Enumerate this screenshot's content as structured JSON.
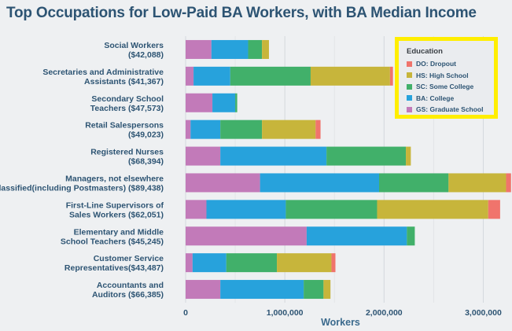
{
  "chart_data": {
    "type": "bar",
    "orientation": "horizontal",
    "stacked": true,
    "title": "Top Occupations for Low-Paid BA Workers, with BA Median Income",
    "xlabel": "Workers",
    "ylabel": "",
    "xlim": [
      0,
      3250000
    ],
    "xticks": [
      0,
      1000000,
      2000000,
      3000000
    ],
    "xtick_labels": [
      "0",
      "1,000,000",
      "2,000,000",
      "3,000,000"
    ],
    "grid": true,
    "legend_position": "top-right",
    "legend_title": "Education",
    "categories": [
      [
        "Social Workers",
        "($42,088)"
      ],
      [
        "Secretaries and Administrative",
        "Assistants ($41,367)"
      ],
      [
        "Secondary School",
        "Teachers ($47,573)"
      ],
      [
        "Retail Salespersons",
        "($49,023)"
      ],
      [
        "Registered Nurses",
        "($68,394)"
      ],
      [
        "Managers, not elsewhere",
        "classified(including Postmasters) ($89,438)"
      ],
      [
        "First-Line Supervisors of",
        "Sales Workers ($62,051)"
      ],
      [
        "Elementary and Middle",
        "School Teachers ($45,245)"
      ],
      [
        "Customer Service",
        "Representatives($43,487)"
      ],
      [
        "Accountants and",
        "Auditors ($66,385)"
      ]
    ],
    "series": [
      {
        "name": "GS: Graduate School",
        "color": "#c27ab9",
        "values": [
          260000,
          80000,
          270000,
          50000,
          350000,
          750000,
          210000,
          1220000,
          70000,
          350000
        ]
      },
      {
        "name": "BA: College",
        "color": "#27a2dc",
        "values": [
          370000,
          370000,
          230000,
          300000,
          1070000,
          1200000,
          800000,
          1010000,
          340000,
          840000
        ]
      },
      {
        "name": "SC: Some College",
        "color": "#41b06a",
        "values": [
          140000,
          810000,
          20000,
          420000,
          800000,
          700000,
          920000,
          80000,
          510000,
          200000
        ]
      },
      {
        "name": "HS: High School",
        "color": "#c7b53b",
        "values": [
          70000,
          800000,
          0,
          540000,
          50000,
          580000,
          1120000,
          0,
          550000,
          70000
        ]
      },
      {
        "name": "DO: Dropout",
        "color": "#f0746c",
        "values": [
          0,
          30000,
          0,
          50000,
          0,
          50000,
          120000,
          0,
          40000,
          0
        ]
      }
    ],
    "legend_order": [
      "DO: Dropout",
      "HS: High School",
      "SC: Some College",
      "BA: College",
      "GS: Graduate School"
    ]
  }
}
